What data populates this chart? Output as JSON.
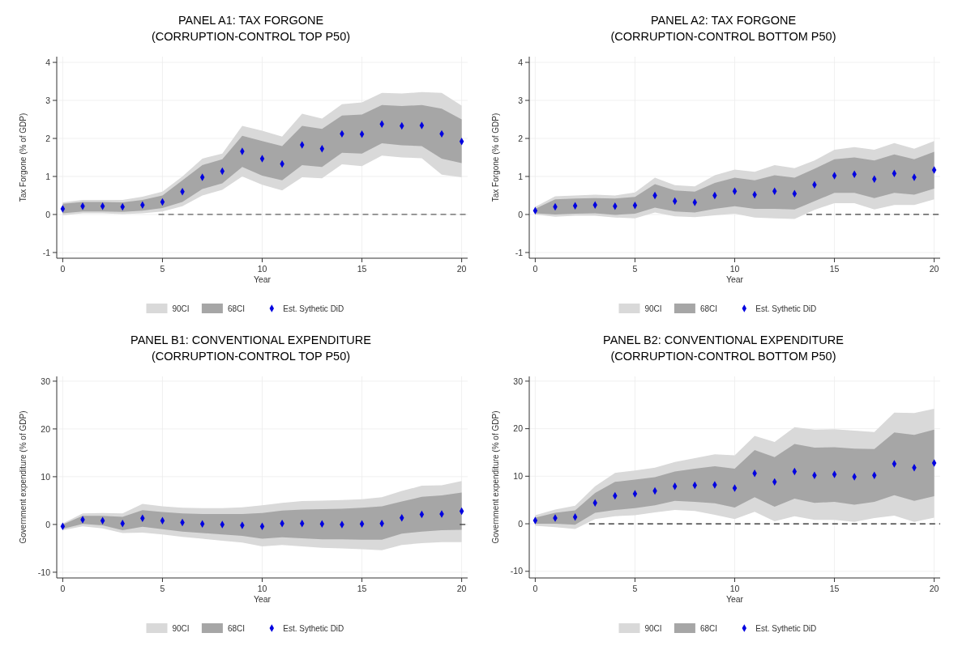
{
  "chart_data": [
    {
      "type": "scatter",
      "title": "PANEL A1: TAX FORGONE",
      "subtitle": "(CORRUPTION-CONTROL TOP P50)",
      "xlabel": "Year",
      "ylabel": "Tax Forgone (% of GDP)",
      "x": [
        0,
        1,
        2,
        3,
        4,
        5,
        6,
        7,
        8,
        9,
        10,
        11,
        12,
        13,
        14,
        15,
        16,
        17,
        18,
        19,
        20
      ],
      "xlim": [
        -0.3,
        20.3
      ],
      "ylim": [
        -1.15,
        4.15
      ],
      "xticks": [
        0,
        5,
        10,
        15,
        20
      ],
      "yticks": [
        -1,
        0,
        1,
        2,
        3,
        4
      ],
      "grid": true,
      "legend": "bottom",
      "series": [
        {
          "name": "90CI",
          "type": "area",
          "color": "#d9d9d9",
          "values": [
            null,
            null,
            null,
            null,
            null,
            null,
            null,
            null,
            null,
            null,
            null,
            null,
            null,
            null,
            null,
            null,
            null,
            null,
            null,
            null,
            null
          ],
          "lower": [
            -0.02,
            0.03,
            0.03,
            0.01,
            0.03,
            0.08,
            0.22,
            0.5,
            0.65,
            1.0,
            0.78,
            0.63,
            0.98,
            0.95,
            1.32,
            1.27,
            1.55,
            1.5,
            1.48,
            1.05,
            0.98
          ],
          "upper": [
            0.32,
            0.38,
            0.38,
            0.38,
            0.47,
            0.6,
            1.0,
            1.47,
            1.6,
            2.33,
            2.2,
            2.05,
            2.65,
            2.52,
            2.9,
            2.95,
            3.2,
            3.18,
            3.22,
            3.2,
            2.86
          ]
        },
        {
          "name": "68CI",
          "type": "area",
          "color": "#a6a6a6",
          "values": [
            null,
            null,
            null,
            null,
            null,
            null,
            null,
            null,
            null,
            null,
            null,
            null,
            null,
            null,
            null,
            null,
            null,
            null,
            null,
            null,
            null
          ],
          "lower": [
            0.03,
            0.08,
            0.08,
            0.07,
            0.1,
            0.17,
            0.33,
            0.67,
            0.82,
            1.25,
            1.02,
            0.9,
            1.3,
            1.25,
            1.62,
            1.6,
            1.87,
            1.82,
            1.8,
            1.47,
            1.35
          ],
          "upper": [
            0.28,
            0.33,
            0.33,
            0.32,
            0.38,
            0.5,
            0.9,
            1.3,
            1.45,
            2.07,
            1.93,
            1.8,
            2.33,
            2.25,
            2.6,
            2.63,
            2.88,
            2.85,
            2.88,
            2.78,
            2.5
          ]
        },
        {
          "name": "Est. Sythetic DiD",
          "marker": "diamond",
          "color": "#0000e0",
          "values": [
            0.15,
            0.22,
            0.22,
            0.2,
            0.25,
            0.33,
            0.6,
            0.98,
            1.14,
            1.66,
            1.47,
            1.33,
            1.83,
            1.73,
            2.12,
            2.11,
            2.38,
            2.33,
            2.34,
            2.12,
            1.92
          ]
        },
        {
          "type": "line",
          "color": "#606060",
          "line_style": "dashed",
          "x": [
            4.8,
            20.3
          ],
          "values": [
            0,
            0
          ]
        }
      ]
    },
    {
      "type": "scatter",
      "title": "PANEL A2: TAX FORGONE",
      "subtitle": "(CORRUPTION-CONTROL BOTTOM P50)",
      "xlabel": "Year",
      "ylabel": "Tax Forgone (% of GDP)",
      "x": [
        0,
        1,
        2,
        3,
        4,
        5,
        6,
        7,
        8,
        9,
        10,
        11,
        12,
        13,
        14,
        15,
        16,
        17,
        18,
        19,
        20
      ],
      "xlim": [
        -0.3,
        20.3
      ],
      "ylim": [
        -1.15,
        4.15
      ],
      "xticks": [
        0,
        5,
        10,
        15,
        20
      ],
      "yticks": [
        -1,
        0,
        1,
        2,
        3,
        4
      ],
      "grid": true,
      "legend": "bottom",
      "series": [
        {
          "name": "90CI",
          "type": "area",
          "color": "#d9d9d9",
          "values": [
            null,
            null,
            null,
            null,
            null,
            null,
            null,
            null,
            null,
            null,
            null,
            null,
            null,
            null,
            null,
            null,
            null,
            null,
            null,
            null,
            null
          ],
          "lower": [
            0.0,
            -0.06,
            -0.03,
            -0.03,
            -0.08,
            -0.1,
            0.05,
            -0.05,
            -0.07,
            -0.02,
            0.02,
            -0.08,
            -0.1,
            -0.12,
            0.12,
            0.3,
            0.3,
            0.13,
            0.25,
            0.25,
            0.4
          ],
          "upper": [
            0.2,
            0.48,
            0.5,
            0.52,
            0.5,
            0.58,
            0.97,
            0.77,
            0.74,
            1.03,
            1.18,
            1.12,
            1.3,
            1.22,
            1.42,
            1.7,
            1.77,
            1.7,
            1.88,
            1.73,
            1.93
          ]
        },
        {
          "name": "68CI",
          "type": "area",
          "color": "#a6a6a6",
          "values": [
            null,
            null,
            null,
            null,
            null,
            null,
            null,
            null,
            null,
            null,
            null,
            null,
            null,
            null,
            null,
            null,
            null,
            null,
            null,
            null,
            null
          ],
          "lower": [
            0.03,
            0.0,
            0.02,
            0.03,
            -0.01,
            0.02,
            0.18,
            0.08,
            0.05,
            0.15,
            0.22,
            0.15,
            0.15,
            0.13,
            0.35,
            0.57,
            0.57,
            0.43,
            0.57,
            0.52,
            0.68
          ],
          "upper": [
            0.15,
            0.4,
            0.42,
            0.43,
            0.42,
            0.46,
            0.8,
            0.63,
            0.6,
            0.83,
            0.97,
            0.9,
            1.03,
            0.97,
            1.2,
            1.45,
            1.5,
            1.42,
            1.58,
            1.45,
            1.65
          ]
        },
        {
          "name": "Est. Sythetic DiD",
          "marker": "diamond",
          "color": "#0000e0",
          "values": [
            0.1,
            0.2,
            0.23,
            0.25,
            0.22,
            0.24,
            0.5,
            0.35,
            0.32,
            0.5,
            0.61,
            0.52,
            0.61,
            0.55,
            0.78,
            1.02,
            1.06,
            0.93,
            1.08,
            0.98,
            1.17
          ]
        },
        {
          "type": "line",
          "color": "#404040",
          "line_style": "dashed",
          "x": [
            13.6,
            20.3
          ],
          "values": [
            0,
            0
          ]
        }
      ]
    },
    {
      "type": "scatter",
      "title": "PANEL B1: CONVENTIONAL EXPENDITURE",
      "subtitle": "(CORRUPTION-CONTROL TOP P50)",
      "xlabel": "Year",
      "ylabel": "Government expenditure (% of GDP)",
      "x": [
        0,
        1,
        2,
        3,
        4,
        5,
        6,
        7,
        8,
        9,
        10,
        11,
        12,
        13,
        14,
        15,
        16,
        17,
        18,
        19,
        20
      ],
      "xlim": [
        -0.3,
        20.3
      ],
      "ylim": [
        -11.2,
        31
      ],
      "xticks": [
        0,
        5,
        10,
        15,
        20
      ],
      "yticks": [
        -10,
        0,
        10,
        20,
        30
      ],
      "grid": true,
      "legend": "bottom",
      "series": [
        {
          "name": "90CI",
          "type": "area",
          "color": "#d9d9d9",
          "values": [
            null,
            null,
            null,
            null,
            null,
            null,
            null,
            null,
            null,
            null,
            null,
            null,
            null,
            null,
            null,
            null,
            null,
            null,
            null,
            null,
            null
          ],
          "lower": [
            -1.2,
            -0.4,
            -0.8,
            -1.8,
            -1.7,
            -2.1,
            -2.6,
            -3.0,
            -3.4,
            -3.8,
            -4.6,
            -4.3,
            -4.6,
            -4.9,
            -5.0,
            -5.2,
            -5.4,
            -4.3,
            -3.9,
            -3.7,
            -3.7
          ],
          "upper": [
            0.2,
            2.3,
            2.4,
            2.3,
            4.3,
            3.8,
            3.5,
            3.4,
            3.4,
            3.6,
            4.0,
            4.5,
            4.9,
            5.0,
            5.1,
            5.3,
            5.7,
            7.0,
            8.1,
            8.2,
            9.1
          ]
        },
        {
          "name": "68CI",
          "type": "area",
          "color": "#a6a6a6",
          "values": [
            null,
            null,
            null,
            null,
            null,
            null,
            null,
            null,
            null,
            null,
            null,
            null,
            null,
            null,
            null,
            null,
            null,
            null,
            null,
            null,
            null
          ],
          "lower": [
            -0.9,
            0.1,
            -0.2,
            -1.2,
            -0.5,
            -1.0,
            -1.5,
            -1.8,
            -2.1,
            -2.4,
            -3.0,
            -2.7,
            -2.9,
            -3.1,
            -3.1,
            -3.2,
            -3.2,
            -1.9,
            -1.5,
            -1.2,
            -1.1
          ],
          "upper": [
            0.0,
            1.8,
            1.8,
            1.6,
            3.0,
            2.6,
            2.3,
            2.2,
            2.2,
            2.2,
            2.4,
            2.9,
            3.1,
            3.2,
            3.3,
            3.5,
            3.8,
            4.8,
            5.8,
            6.1,
            6.7
          ]
        },
        {
          "name": "Est. Sythetic DiD",
          "marker": "diamond",
          "color": "#0000e0",
          "values": [
            -0.4,
            1.0,
            0.8,
            0.2,
            1.3,
            0.8,
            0.4,
            0.1,
            0.0,
            -0.2,
            -0.4,
            0.2,
            0.2,
            0.1,
            0.0,
            0.1,
            0.2,
            1.4,
            2.1,
            2.2,
            2.8
          ]
        },
        {
          "type": "line",
          "color": "#404040",
          "line_style": "dashed",
          "x": [
            19.9,
            20.3
          ],
          "values": [
            0,
            0
          ]
        }
      ]
    },
    {
      "type": "scatter",
      "title": "PANEL B2: CONVENTIONAL EXPENDITURE",
      "subtitle": "(CORRUPTION-CONTROL BOTTOM P50)",
      "xlabel": "Year",
      "ylabel": "Government expenditure (% of GDP)",
      "x": [
        0,
        1,
        2,
        3,
        4,
        5,
        6,
        7,
        8,
        9,
        10,
        11,
        12,
        13,
        14,
        15,
        16,
        17,
        18,
        19,
        20
      ],
      "xlim": [
        -0.3,
        20.3
      ],
      "ylim": [
        -11.4,
        31
      ],
      "xticks": [
        0,
        5,
        10,
        15,
        20
      ],
      "yticks": [
        -10,
        0,
        10,
        20,
        30
      ],
      "grid": true,
      "legend": "bottom",
      "series": [
        {
          "name": "90CI",
          "type": "area",
          "color": "#d9d9d9",
          "values": [
            null,
            null,
            null,
            null,
            null,
            null,
            null,
            null,
            null,
            null,
            null,
            null,
            null,
            null,
            null,
            null,
            null,
            null,
            null,
            null,
            null
          ],
          "lower": [
            -0.4,
            -0.7,
            -1.1,
            1.0,
            1.6,
            1.8,
            2.4,
            2.9,
            2.7,
            1.9,
            1.0,
            2.5,
            0.5,
            1.6,
            0.8,
            0.8,
            0.4,
            1.2,
            1.7,
            0.4,
            1.3
          ],
          "upper": [
            1.8,
            3.0,
            3.8,
            7.9,
            10.7,
            11.2,
            11.8,
            13.0,
            13.8,
            14.6,
            14.4,
            18.5,
            17.2,
            20.3,
            19.8,
            19.9,
            19.6,
            19.3,
            23.4,
            23.3,
            24.2
          ]
        },
        {
          "name": "68CI",
          "type": "area",
          "color": "#a6a6a6",
          "values": [
            null,
            null,
            null,
            null,
            null,
            null,
            null,
            null,
            null,
            null,
            null,
            null,
            null,
            null,
            null,
            null,
            null,
            null,
            null,
            null,
            null
          ],
          "lower": [
            0.0,
            0.0,
            -0.2,
            2.3,
            2.9,
            3.3,
            3.9,
            4.8,
            4.6,
            4.3,
            3.4,
            5.6,
            3.6,
            5.3,
            4.4,
            4.6,
            4.0,
            4.6,
            6.0,
            4.8,
            5.8
          ],
          "upper": [
            1.3,
            2.3,
            2.8,
            6.5,
            8.8,
            9.3,
            9.8,
            11.0,
            11.6,
            12.1,
            11.6,
            15.5,
            14.0,
            16.8,
            16.0,
            16.1,
            15.8,
            15.7,
            19.2,
            18.7,
            19.8
          ]
        },
        {
          "name": "Est. Sythetic DiD",
          "marker": "diamond",
          "color": "#0000e0",
          "values": [
            0.7,
            1.2,
            1.4,
            4.4,
            5.9,
            6.3,
            6.9,
            7.9,
            8.1,
            8.2,
            7.5,
            10.6,
            8.8,
            11.0,
            10.2,
            10.4,
            9.9,
            10.2,
            12.6,
            11.8,
            12.8
          ]
        },
        {
          "type": "line",
          "color": "#202020",
          "line_style": "dashed",
          "x": [
            2.7,
            20.3
          ],
          "values": [
            0,
            0
          ]
        }
      ]
    }
  ]
}
